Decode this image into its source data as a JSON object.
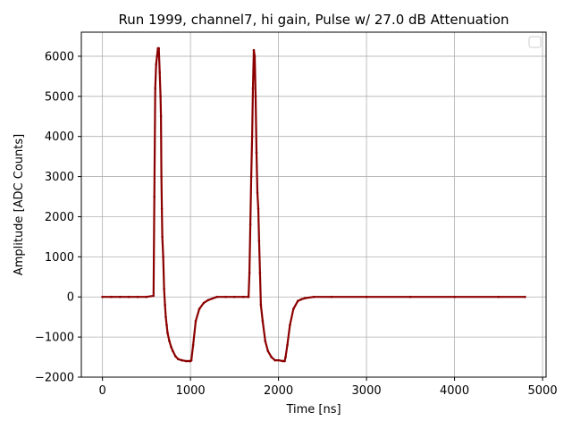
{
  "chart_data": {
    "type": "scatter",
    "title": "Run 1999, channel7, hi gain, Pulse w/ 27.0 dB Attenuation",
    "xlabel": "Time [ns]",
    "ylabel": "Amplitude [ADC Counts]",
    "xlim": [
      -240,
      5040
    ],
    "ylim": [
      -2000,
      6600
    ],
    "xticks": [
      0,
      1000,
      2000,
      3000,
      4000,
      5000
    ],
    "yticks": [
      -2000,
      -1000,
      0,
      1000,
      2000,
      3000,
      4000,
      5000,
      6000
    ],
    "grid": true,
    "legend": {
      "placement": "top-right",
      "entries": []
    },
    "colors": {
      "series": "#8b0000",
      "grid": "#b0b0b0"
    },
    "series": [
      {
        "x": [
          0,
          100,
          200,
          300,
          400,
          500,
          580,
          590,
          600,
          610,
          620,
          630,
          640,
          650,
          660,
          665,
          670,
          675,
          680,
          690,
          700,
          710,
          720,
          730,
          740,
          760,
          780,
          800,
          830,
          860,
          900,
          950,
          990,
          1000,
          1010,
          1030,
          1060,
          1100,
          1150,
          1200,
          1300,
          1400,
          1500,
          1600,
          1660,
          1670,
          1680,
          1690,
          1700,
          1710,
          1720,
          1730,
          1740,
          1750,
          1760,
          1770,
          1780,
          1790,
          1800,
          1820,
          1850,
          1880,
          1920,
          1960,
          2000,
          2050,
          2070,
          2080,
          2100,
          2130,
          2170,
          2220,
          2260,
          2300,
          2400,
          2600,
          3000,
          3500,
          4000,
          4500,
          4800
        ],
        "y": [
          0,
          0,
          0,
          0,
          0,
          0,
          30,
          2500,
          5200,
          5800,
          6000,
          6200,
          6200,
          5600,
          5000,
          4500,
          3000,
          2200,
          1500,
          1000,
          200,
          -200,
          -500,
          -700,
          -900,
          -1100,
          -1250,
          -1350,
          -1480,
          -1550,
          -1580,
          -1600,
          -1600,
          -1600,
          -1580,
          -1200,
          -600,
          -300,
          -150,
          -80,
          0,
          0,
          0,
          0,
          0,
          600,
          1800,
          3000,
          4000,
          5200,
          6150,
          6000,
          5000,
          3600,
          2600,
          2200,
          1400,
          600,
          -200,
          -600,
          -1100,
          -1350,
          -1500,
          -1580,
          -1580,
          -1600,
          -1600,
          -1500,
          -1200,
          -700,
          -300,
          -100,
          -60,
          -30,
          0,
          0,
          0,
          0,
          0,
          0,
          0
        ]
      }
    ]
  }
}
